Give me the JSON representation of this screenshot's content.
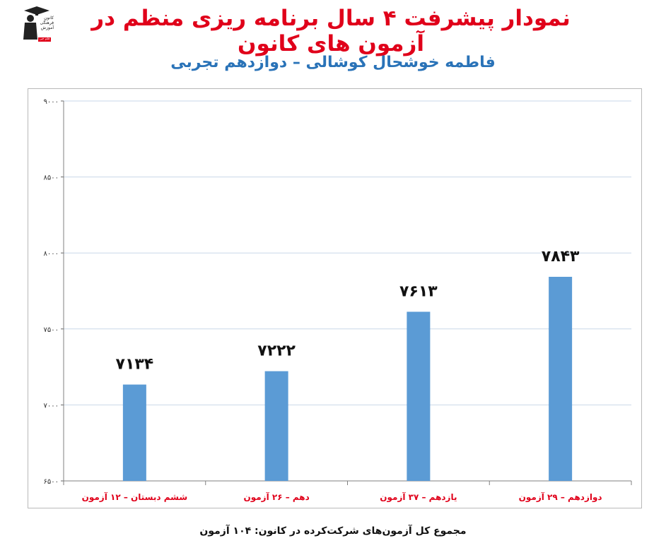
{
  "header": {
    "title": "نمودار پیشرفت ۴ سال برنامه ریزی منظم در آزمون های کانون",
    "subtitle": "فاطمه خوشحال کوشالی – دوازدهم تجربی"
  },
  "logo": {
    "text_lines": [
      "کانون",
      "فرهنگی",
      "آموزش",
      "قلم چی"
    ],
    "icon": "graduate-figure-logo"
  },
  "colors": {
    "title": "#e0001a",
    "subtitle": "#2a73b8",
    "bar": "#5b9bd5",
    "category_label": "#e0001a",
    "value_label": "#111111",
    "grid": "#c9d7e8"
  },
  "chart_data": {
    "type": "bar",
    "categories": [
      "ششم دبستان – ۱۲ آزمون",
      "دهم – ۲۶ آزمون",
      "یازدهم – ۳۷ آزمون",
      "دوازدهم – ۲۹ آزمون"
    ],
    "values": [
      7134,
      7222,
      7613,
      7843
    ],
    "value_labels": [
      "۷۱۳۴",
      "۷۲۲۲",
      "۷۶۱۳",
      "۷۸۴۳"
    ],
    "ylim": [
      6500,
      9000
    ],
    "yticks": [
      6500,
      7000,
      7500,
      8000,
      8500,
      9000
    ],
    "ytick_labels": [
      "۶۵۰۰",
      "۷۰۰۰",
      "۷۵۰۰",
      "۸۰۰۰",
      "۸۵۰۰",
      "۹۰۰۰"
    ],
    "grid": true,
    "legend": "none"
  },
  "footer": {
    "summary": "مجموع کل آزمون‌های شرکت‌کرده در کانون: ۱۰۴ آزمون"
  }
}
